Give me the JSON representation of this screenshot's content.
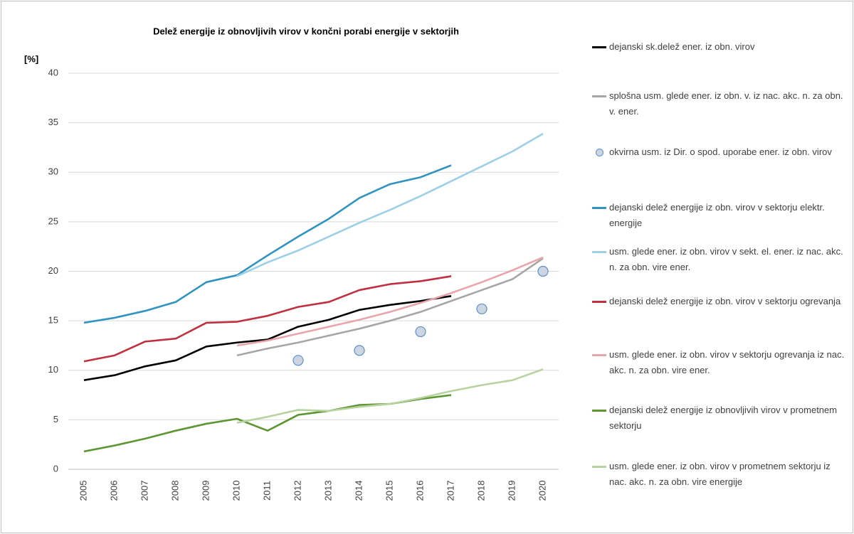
{
  "chart_data": {
    "type": "line",
    "title": "Delež energije iz obnovljivih virov  v končni porabi energije v sektorjih",
    "y_label": "[%]",
    "categories": [
      "2005",
      "2006",
      "2007",
      "2008",
      "2009",
      "2010",
      "2011",
      "2012",
      "2013",
      "2014",
      "2015",
      "2016",
      "2017",
      "2018",
      "2019",
      "2020"
    ],
    "ylim": [
      0,
      40
    ],
    "yticks": [
      0,
      5,
      10,
      15,
      20,
      25,
      30,
      35,
      40
    ],
    "grid": true,
    "series": [
      {
        "name": "dejanski sk.delež ener. iz obn. virov",
        "color": "#000000",
        "values": [
          9.0,
          9.5,
          10.4,
          11.0,
          12.4,
          12.8,
          13.1,
          14.4,
          15.1,
          16.1,
          16.6,
          17.0,
          17.5,
          null,
          null,
          null
        ]
      },
      {
        "name": "splošna usm. glede ener. iz obn. v. iz nac. akc. n. za obn. v. ener.",
        "color": "#a6a6a6",
        "values": [
          null,
          null,
          null,
          null,
          null,
          11.5,
          12.2,
          12.8,
          13.5,
          14.2,
          15.0,
          15.9,
          17.0,
          18.1,
          19.2,
          21.3
        ]
      },
      {
        "name": "okvirna usm. iz Dir. o spod. uporabe ener. iz obn. virov",
        "color": "#ccd5e0",
        "style": "markers",
        "values": [
          null,
          null,
          null,
          null,
          null,
          null,
          null,
          11.0,
          null,
          12.0,
          null,
          13.9,
          null,
          16.2,
          null,
          20.0
        ]
      },
      {
        "name": "dejanski delež energije iz obn. virov v sektorju elektr. energije",
        "color": "#3193c0",
        "values": [
          14.8,
          15.3,
          16.0,
          16.9,
          18.9,
          19.6,
          21.6,
          23.5,
          25.3,
          27.4,
          28.8,
          29.5,
          30.7,
          null,
          null,
          null
        ]
      },
      {
        "name": "usm. glede ener. iz obn. virov v sekt. el. ener. iz nac. akc. n. za obn. vire ener.",
        "color": "#9dcfe6",
        "values": [
          null,
          null,
          null,
          null,
          null,
          19.5,
          20.9,
          22.1,
          23.5,
          24.9,
          26.2,
          27.6,
          29.1,
          30.6,
          32.1,
          33.9
        ]
      },
      {
        "name": "dejanski delež energije iz obn. virov v sektorju ogrevanja",
        "color": "#c0303f",
        "values": [
          10.9,
          11.5,
          12.9,
          13.2,
          14.8,
          14.9,
          15.5,
          16.4,
          16.9,
          18.1,
          18.7,
          19.0,
          19.5,
          null,
          null,
          null
        ]
      },
      {
        "name": "usm. glede ener. iz obn. virov v sektorju ogrevanja iz nac. akc. n. za obn. vire ener.",
        "color": "#e8a6ac",
        "values": [
          null,
          null,
          null,
          null,
          null,
          12.5,
          13.0,
          13.7,
          14.4,
          15.1,
          15.9,
          16.8,
          17.8,
          18.9,
          20.1,
          21.4
        ]
      },
      {
        "name": "dejanski delež energije iz obnovljivih virov v prometnem sektorju",
        "color": "#5e9634",
        "values": [
          1.8,
          2.4,
          3.1,
          3.9,
          4.6,
          5.1,
          3.9,
          5.5,
          5.9,
          6.5,
          6.6,
          7.1,
          7.5,
          null,
          null,
          null
        ]
      },
      {
        "name": "usm. glede ener. iz obn. virov v prometnem sektorju iz nac. akc. n. za obn. vire energije",
        "color": "#b9d3a0",
        "values": [
          null,
          null,
          null,
          null,
          null,
          4.7,
          5.3,
          6.0,
          5.9,
          6.3,
          6.6,
          7.2,
          7.9,
          8.5,
          9.0,
          10.1
        ]
      }
    ]
  }
}
